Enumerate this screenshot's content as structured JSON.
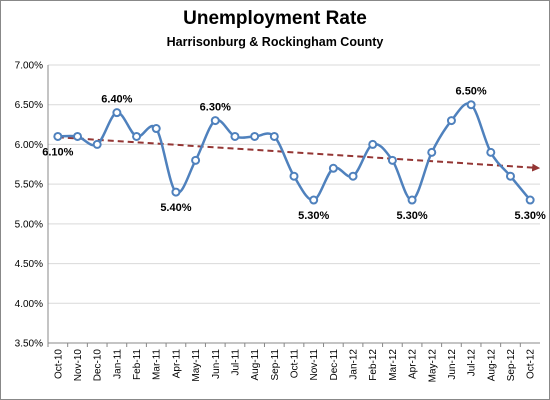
{
  "chart_data": {
    "type": "line",
    "title": "Unemployment Rate",
    "subtitle": "Harrisonburg & Rockingham County",
    "categories": [
      "Oct-10",
      "Nov-10",
      "Dec-10",
      "Jan-11",
      "Feb-11",
      "Mar-11",
      "Apr-11",
      "May-11",
      "Jun-11",
      "Jul-11",
      "Aug-11",
      "Sep-11",
      "Oct-11",
      "Nov-11",
      "Dec-11",
      "Jan-12",
      "Feb-12",
      "Mar-12",
      "Apr-12",
      "May-12",
      "Jun-12",
      "Jul-12",
      "Aug-12",
      "Sep-12",
      "Oct-12"
    ],
    "values": [
      6.1,
      6.1,
      6.0,
      6.4,
      6.1,
      6.2,
      5.4,
      5.8,
      6.3,
      6.1,
      6.1,
      6.1,
      5.6,
      5.3,
      5.7,
      5.6,
      6.0,
      5.8,
      5.3,
      5.9,
      6.3,
      6.5,
      5.9,
      5.6,
      5.3
    ],
    "value_labels": [
      "6.10%",
      null,
      null,
      "6.40%",
      null,
      null,
      "5.40%",
      null,
      "6.30%",
      null,
      null,
      null,
      null,
      "5.30%",
      null,
      null,
      null,
      null,
      "5.30%",
      null,
      null,
      "6.50%",
      null,
      null,
      "5.30%"
    ],
    "color": "#4f81bd",
    "trendline_color": "#943634",
    "ylim": [
      3.5,
      7.0
    ],
    "yticks": [
      {
        "value": 3.5,
        "label": "3.50%"
      },
      {
        "value": 4.0,
        "label": "4.00%"
      },
      {
        "value": 4.5,
        "label": "4.50%"
      },
      {
        "value": 5.0,
        "label": "5.00%"
      },
      {
        "value": 5.5,
        "label": "5.50%"
      },
      {
        "value": 6.0,
        "label": "6.00%"
      },
      {
        "value": 6.5,
        "label": "6.50%"
      },
      {
        "value": 7.0,
        "label": "7.00%"
      }
    ],
    "grid": true
  }
}
